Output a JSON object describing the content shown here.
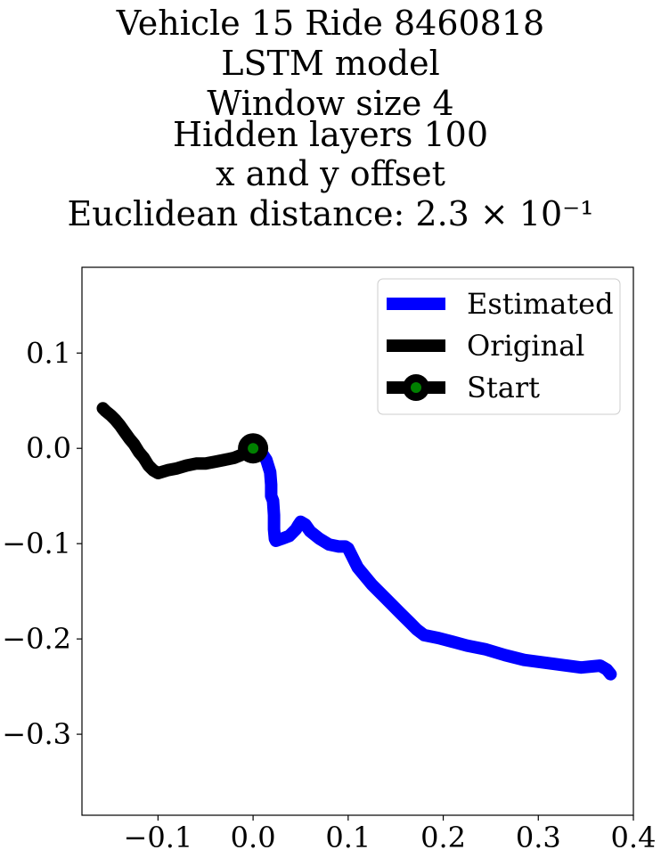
{
  "chart_data": {
    "type": "line",
    "title_lines": [
      "Vehicle 15 Ride 8460818",
      "LSTM model",
      "Window size 4",
      "Hidden layers 100",
      "x and y offset",
      "Euclidean distance: 2.3 × 10⁻¹"
    ],
    "xlabel": "",
    "ylabel": "",
    "xlim": [
      -0.18,
      0.4
    ],
    "ylim": [
      -0.385,
      0.19
    ],
    "xticks": [
      -0.1,
      0.0,
      0.1,
      0.2,
      0.3,
      0.4
    ],
    "xtick_labels": [
      "−0.1",
      "0.0",
      "0.1",
      "0.2",
      "0.3",
      "0.4"
    ],
    "yticks": [
      0.1,
      0.0,
      -0.1,
      -0.2,
      -0.3
    ],
    "ytick_labels": [
      "0.1",
      "0.0",
      "−0.1",
      "−0.2",
      "−0.3"
    ],
    "grid": false,
    "legend": {
      "placement": "top-right",
      "entries": [
        "Estimated",
        "Original",
        "Start"
      ]
    },
    "series": [
      {
        "name": "Estimated",
        "color": "#0000ff",
        "x": [
          0.0,
          0.008,
          0.014,
          0.018,
          0.019,
          0.019,
          0.021,
          0.022,
          0.022,
          0.023,
          0.024,
          0.03,
          0.038,
          0.045,
          0.048,
          0.05,
          0.055,
          0.06,
          0.07,
          0.08,
          0.09,
          0.097,
          0.1,
          0.11,
          0.125,
          0.14,
          0.155,
          0.165,
          0.172,
          0.18,
          0.195,
          0.21,
          0.225,
          0.245,
          0.265,
          0.285,
          0.3,
          0.315,
          0.33,
          0.345,
          0.355,
          0.365,
          0.372,
          0.376
        ],
        "y": [
          0.0,
          -0.003,
          -0.012,
          -0.025,
          -0.038,
          -0.05,
          -0.055,
          -0.07,
          -0.085,
          -0.095,
          -0.097,
          -0.095,
          -0.092,
          -0.085,
          -0.08,
          -0.077,
          -0.08,
          -0.087,
          -0.095,
          -0.101,
          -0.103,
          -0.103,
          -0.105,
          -0.125,
          -0.143,
          -0.158,
          -0.173,
          -0.183,
          -0.19,
          -0.196,
          -0.199,
          -0.203,
          -0.207,
          -0.211,
          -0.217,
          -0.222,
          -0.224,
          -0.226,
          -0.228,
          -0.23,
          -0.229,
          -0.228,
          -0.232,
          -0.237
        ]
      },
      {
        "name": "Original",
        "color": "#000000",
        "x": [
          0.0,
          -0.01,
          -0.02,
          -0.03,
          -0.04,
          -0.05,
          -0.06,
          -0.07,
          -0.08,
          -0.09,
          -0.1,
          -0.105,
          -0.11,
          -0.115,
          -0.12,
          -0.125,
          -0.13,
          -0.135,
          -0.14,
          -0.145,
          -0.15,
          -0.155,
          -0.158
        ],
        "y": [
          0.0,
          -0.006,
          -0.01,
          -0.012,
          -0.014,
          -0.016,
          -0.016,
          -0.018,
          -0.021,
          -0.023,
          -0.026,
          -0.023,
          -0.018,
          -0.01,
          -0.004,
          0.004,
          0.01,
          0.017,
          0.024,
          0.03,
          0.035,
          0.039,
          0.042
        ]
      }
    ],
    "start_marker": {
      "name": "Start",
      "x": 0.0,
      "y": 0.0,
      "edge_color": "#000000",
      "face_color": "#008000"
    }
  }
}
